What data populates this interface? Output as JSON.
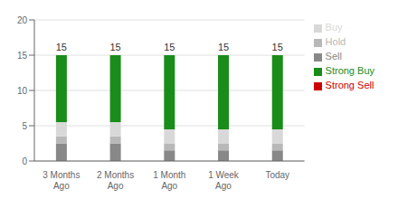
{
  "chart_data": {
    "type": "bar",
    "stacked": true,
    "categories": [
      "3 Months\nAgo",
      "2 Months\nAgo",
      "1 Month\nAgo",
      "1 Week\nAgo",
      "Today"
    ],
    "series": [
      {
        "name": "Sell",
        "color": "#888888",
        "values": [
          2.5,
          2.5,
          1.5,
          1.5,
          1.5
        ]
      },
      {
        "name": "Hold",
        "color": "#b8b8b8",
        "values": [
          1.0,
          1.0,
          1.0,
          1.0,
          1.0
        ]
      },
      {
        "name": "Buy",
        "color": "#d8d8d8",
        "values": [
          2.0,
          2.0,
          2.0,
          2.0,
          2.0
        ]
      },
      {
        "name": "Strong Buy",
        "color": "#1a8c1a",
        "values": [
          9.5,
          9.5,
          10.5,
          10.5,
          10.5
        ]
      },
      {
        "name": "Strong Sell",
        "color": "#cc0000",
        "values": [
          0,
          0,
          0,
          0,
          0
        ]
      }
    ],
    "totals": [
      15,
      15,
      15,
      15,
      15
    ],
    "ylim": [
      0,
      20
    ],
    "yticks": [
      0,
      5,
      10,
      15,
      20
    ],
    "grid": true,
    "legend": "right"
  }
}
